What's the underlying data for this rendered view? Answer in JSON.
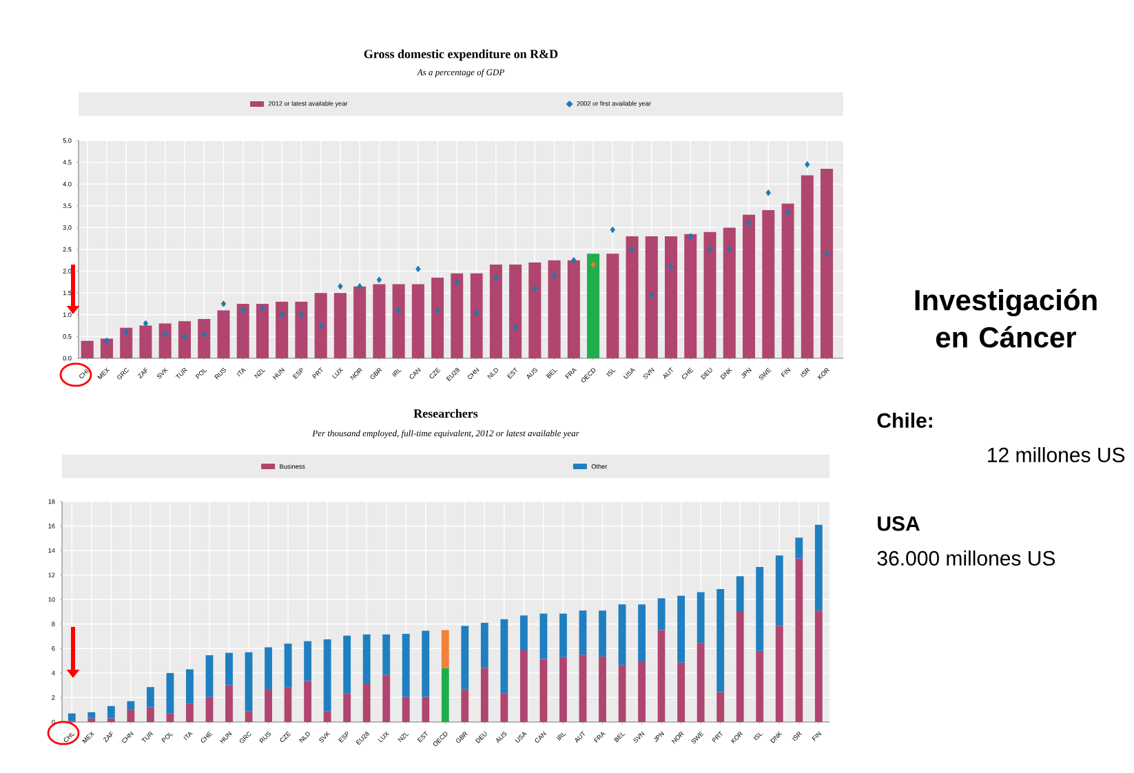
{
  "chart_data": [
    {
      "type": "bar",
      "title": "Gross domestic expenditure on R&D",
      "subtitle": "As a percentage of GDP",
      "categories": [
        "CHL",
        "MEX",
        "GRC",
        "ZAF",
        "SVK",
        "TUR",
        "POL",
        "RUS",
        "ITA",
        "NZL",
        "HUN",
        "ESP",
        "PRT",
        "LUX",
        "NOR",
        "GBR",
        "IRL",
        "CAN",
        "CZE",
        "EU28",
        "CHN",
        "NLD",
        "EST",
        "AUS",
        "BEL",
        "FRA",
        "OECD",
        "ISL",
        "USA",
        "SVN",
        "AUT",
        "CHE",
        "DEU",
        "DNK",
        "JPN",
        "SWE",
        "FIN",
        "ISR",
        "KOR"
      ],
      "series": [
        {
          "name": "2012 or latest available year",
          "color": "#b0456f",
          "colors": [
            "#b0456f",
            "#b0456f",
            "#b0456f",
            "#b0456f",
            "#b0456f",
            "#b0456f",
            "#b0456f",
            "#b0456f",
            "#b0456f",
            "#b0456f",
            "#b0456f",
            "#b0456f",
            "#b0456f",
            "#b0456f",
            "#b0456f",
            "#b0456f",
            "#b0456f",
            "#b0456f",
            "#b0456f",
            "#b0456f",
            "#b0456f",
            "#b0456f",
            "#b0456f",
            "#b0456f",
            "#b0456f",
            "#b0456f",
            "#1fae4e",
            "#b0456f",
            "#b0456f",
            "#b0456f",
            "#b0456f",
            "#b0456f",
            "#b0456f",
            "#b0456f",
            "#b0456f",
            "#b0456f",
            "#b0456f",
            "#b0456f",
            "#b0456f"
          ],
          "values": [
            0.4,
            0.45,
            0.7,
            0.75,
            0.8,
            0.85,
            0.9,
            1.1,
            1.25,
            1.25,
            1.3,
            1.3,
            1.5,
            1.5,
            1.65,
            1.7,
            1.7,
            1.7,
            1.85,
            1.95,
            1.95,
            2.15,
            2.15,
            2.2,
            2.25,
            2.25,
            2.4,
            2.4,
            2.8,
            2.8,
            2.8,
            2.85,
            2.9,
            3.0,
            3.3,
            3.4,
            3.55,
            4.2,
            4.35
          ]
        },
        {
          "name": "2002 or first available year",
          "type": "scatter",
          "color": "#1a7ab5",
          "colors": [
            "#1a7ab5",
            "#1a7ab5",
            "#1a7ab5",
            "#1a7ab5",
            "#1a7ab5",
            "#1a7ab5",
            "#1a7ab5",
            "#1a7ab5",
            "#1a7ab5",
            "#1a7ab5",
            "#1a7ab5",
            "#1a7ab5",
            "#1a7ab5",
            "#1a7ab5",
            "#1a7ab5",
            "#1a7ab5",
            "#1a7ab5",
            "#1a7ab5",
            "#1a7ab5",
            "#1a7ab5",
            "#1a7ab5",
            "#1a7ab5",
            "#1a7ab5",
            "#1a7ab5",
            "#1a7ab5",
            "#1a7ab5",
            "#f07a2a",
            "#1a7ab5",
            "#1a7ab5",
            "#1a7ab5",
            "#1a7ab5",
            "#1a7ab5",
            "#1a7ab5",
            "#1a7ab5",
            "#1a7ab5",
            "#1a7ab5",
            "#1a7ab5",
            "#1a7ab5",
            "#1a7ab5"
          ],
          "values": [
            null,
            0.4,
            0.6,
            0.8,
            0.55,
            0.5,
            0.55,
            1.25,
            1.1,
            1.15,
            1.0,
            1.0,
            0.75,
            1.65,
            1.65,
            1.8,
            1.1,
            2.05,
            1.1,
            1.75,
            1.05,
            1.85,
            0.7,
            1.6,
            1.9,
            2.25,
            2.15,
            2.95,
            2.5,
            1.45,
            2.1,
            2.8,
            2.5,
            2.5,
            3.1,
            3.8,
            3.35,
            4.45,
            2.4
          ]
        }
      ],
      "marker": "diamond",
      "ylim": [
        0,
        5
      ],
      "yticks": [
        {
          "value": 0,
          "label": "0.0"
        },
        0.5,
        {
          "value": 1,
          "label": "1.0"
        },
        1.5,
        {
          "value": 2,
          "label": "2.0"
        },
        2.5,
        {
          "value": 3,
          "label": "3.0"
        },
        3.5,
        {
          "value": 4,
          "label": "4.0"
        },
        4.5,
        {
          "value": 5,
          "label": "5.0"
        }
      ],
      "grid": true,
      "legend": "top"
    },
    {
      "type": "bar",
      "stacked": true,
      "title": "Researchers",
      "subtitle": "Per thousand employed, full-time equivalent, 2012 or latest available year",
      "categories": [
        "CHL",
        "MEX",
        "ZAF",
        "CHN",
        "TUR",
        "POL",
        "ITA",
        "CHE",
        "HUN",
        "GRC",
        "RUS",
        "CZE",
        "NLD",
        "SVK",
        "ESP",
        "EU28",
        "LUX",
        "NZL",
        "EST",
        "OECD",
        "GBR",
        "DEU",
        "AUS",
        "USA",
        "CAN",
        "IRL",
        "AUT",
        "FRA",
        "BEL",
        "SVN",
        "JPN",
        "NOR",
        "SWE",
        "PRT",
        "KOR",
        "ISL",
        "DNK",
        "ISR",
        "FIN"
      ],
      "series": [
        {
          "name": "Business",
          "color": "#b0456f",
          "colors": [
            "#b0456f",
            "#b0456f",
            "#b0456f",
            "#b0456f",
            "#b0456f",
            "#b0456f",
            "#b0456f",
            "#b0456f",
            "#b0456f",
            "#b0456f",
            "#b0456f",
            "#b0456f",
            "#b0456f",
            "#b0456f",
            "#b0456f",
            "#b0456f",
            "#b0456f",
            "#b0456f",
            "#b0456f",
            "#1fae4e",
            "#b0456f",
            "#b0456f",
            "#b0456f",
            "#b0456f",
            "#b0456f",
            "#b0456f",
            "#b0456f",
            "#b0456f",
            "#b0456f",
            "#b0456f",
            "#b0456f",
            "#b0456f",
            "#b0456f",
            "#b0456f",
            "#b0456f",
            "#b0456f",
            "#b0456f",
            "#b0456f",
            "#b0456f"
          ],
          "values": [
            0.1,
            0.3,
            0.3,
            1.0,
            1.2,
            0.7,
            1.5,
            2.05,
            3.0,
            0.85,
            2.65,
            2.8,
            3.35,
            0.85,
            2.35,
            3.15,
            3.85,
            2.05,
            2.05,
            4.4,
            2.65,
            4.4,
            2.35,
            5.85,
            5.15,
            5.3,
            5.5,
            5.35,
            4.65,
            4.95,
            7.5,
            4.85,
            6.45,
            2.45,
            9.05,
            5.8,
            7.85,
            13.35,
            9.1
          ]
        },
        {
          "name": "Other",
          "color": "#1f7fc0",
          "colors": [
            "#1f7fc0",
            "#1f7fc0",
            "#1f7fc0",
            "#1f7fc0",
            "#1f7fc0",
            "#1f7fc0",
            "#1f7fc0",
            "#1f7fc0",
            "#1f7fc0",
            "#1f7fc0",
            "#1f7fc0",
            "#1f7fc0",
            "#1f7fc0",
            "#1f7fc0",
            "#1f7fc0",
            "#1f7fc0",
            "#1f7fc0",
            "#1f7fc0",
            "#1f7fc0",
            "#f0803a",
            "#1f7fc0",
            "#1f7fc0",
            "#1f7fc0",
            "#1f7fc0",
            "#1f7fc0",
            "#1f7fc0",
            "#1f7fc0",
            "#1f7fc0",
            "#1f7fc0",
            "#1f7fc0",
            "#1f7fc0",
            "#1f7fc0",
            "#1f7fc0",
            "#1f7fc0",
            "#1f7fc0",
            "#1f7fc0",
            "#1f7fc0",
            "#1f7fc0",
            "#1f7fc0"
          ],
          "values": [
            0.6,
            0.5,
            1.0,
            0.7,
            1.65,
            3.3,
            2.8,
            3.4,
            2.65,
            4.85,
            3.45,
            3.6,
            3.25,
            5.9,
            4.7,
            4.0,
            3.3,
            5.15,
            5.4,
            3.1,
            5.2,
            3.7,
            6.05,
            2.85,
            3.7,
            3.55,
            3.6,
            3.75,
            4.95,
            4.65,
            2.6,
            5.45,
            4.15,
            8.4,
            2.85,
            6.85,
            5.75,
            1.7,
            7.0
          ]
        }
      ],
      "ylim": [
        0,
        18
      ],
      "yticks": [
        0,
        2,
        4,
        6,
        8,
        10,
        12,
        14,
        16,
        18
      ],
      "grid": true,
      "legend": "top"
    },
    {
      "type": "other",
      "title": "Investigación en Cáncer",
      "annotations": [
        "Chile:",
        "12 millones US",
        "USA",
        "36.000 millones US"
      ]
    }
  ]
}
